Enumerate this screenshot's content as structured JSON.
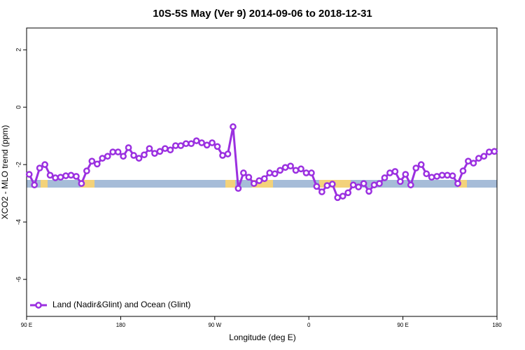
{
  "chart_data": {
    "type": "line",
    "title": "10S-5S May (Ver 9)   2014-09-06 to 2018-12-31",
    "x_label": "Longitude (deg E)",
    "y_label": "XCO2 - MLO trend (ppm)",
    "xlim": [
      90,
      540
    ],
    "xticks": [
      {
        "value": 90,
        "label": "90 E"
      },
      180,
      {
        "value": 270,
        "label": "90 W"
      },
      {
        "value": 360,
        "label": "0"
      },
      {
        "value": 450,
        "label": "90 E"
      },
      {
        "value": 540,
        "label": "180"
      }
    ],
    "ylim": [
      -7.29,
      2.76
    ],
    "yticks": [
      2,
      0,
      -2,
      -4,
      -6
    ],
    "legend": "bottom-left",
    "x": [
      92.5,
      97.5,
      102.5,
      107.5,
      112.5,
      117.5,
      122.5,
      127.5,
      132.5,
      137.5,
      142.5,
      147.5,
      152.5,
      157.5,
      162.5,
      167.5,
      172.5,
      177.5,
      182.5,
      187.5,
      192.5,
      197.5,
      202.5,
      207.5,
      212.5,
      217.5,
      222.5,
      227.5,
      232.5,
      237.5,
      242.5,
      247.5,
      252.5,
      257.5,
      262.5,
      267.5,
      272.5,
      277.5,
      282.5,
      287.5,
      292.5,
      297.5,
      302.5,
      307.5,
      312.5,
      317.5,
      322.5,
      327.5,
      332.5,
      337.5,
      342.5,
      347.5,
      352.5,
      357.5,
      362.5,
      367.5,
      372.5,
      377.5,
      382.5,
      387.5,
      392.5,
      397.5,
      402.5,
      407.5,
      412.5,
      417.5,
      422.5,
      427.5,
      432.5,
      437.5,
      442.5,
      447.5,
      452.5,
      457.5,
      462.5,
      467.5,
      472.5,
      477.5,
      482.5,
      487.5,
      492.5,
      497.5,
      502.5,
      507.5,
      512.5,
      517.5,
      522.5,
      527.5,
      532.5,
      537.5
    ],
    "series": [
      {
        "name": "Land (Nadir&Glint) and Ocean (Glint)",
        "color": "#9b30e0",
        "values": [
          -2.34,
          -2.71,
          -2.12,
          -2.0,
          -2.37,
          -2.46,
          -2.44,
          -2.39,
          -2.37,
          -2.41,
          -2.66,
          -2.22,
          -1.88,
          -1.98,
          -1.78,
          -1.71,
          -1.56,
          -1.56,
          -1.71,
          -1.41,
          -1.68,
          -1.78,
          -1.66,
          -1.44,
          -1.61,
          -1.54,
          -1.44,
          -1.49,
          -1.34,
          -1.34,
          -1.27,
          -1.27,
          -1.17,
          -1.24,
          -1.32,
          -1.24,
          -1.37,
          -1.68,
          -1.63,
          -0.68,
          -2.83,
          -2.29,
          -2.44,
          -2.66,
          -2.56,
          -2.49,
          -2.29,
          -2.32,
          -2.2,
          -2.1,
          -2.05,
          -2.2,
          -2.15,
          -2.29,
          -2.29,
          -2.76,
          -2.95,
          -2.73,
          -2.68,
          -3.15,
          -3.1,
          -2.98,
          -2.71,
          -2.78,
          -2.66,
          -2.93,
          -2.71,
          -2.66,
          -2.46,
          -2.29,
          -2.24,
          -2.59,
          -2.34,
          -2.71,
          -2.12,
          -2.0,
          -2.32,
          -2.44,
          -2.41,
          -2.37,
          -2.37,
          -2.39,
          -2.66,
          -2.22,
          -1.88,
          -1.95,
          -1.78,
          -1.71,
          -1.56,
          -1.54
        ]
      }
    ]
  }
}
